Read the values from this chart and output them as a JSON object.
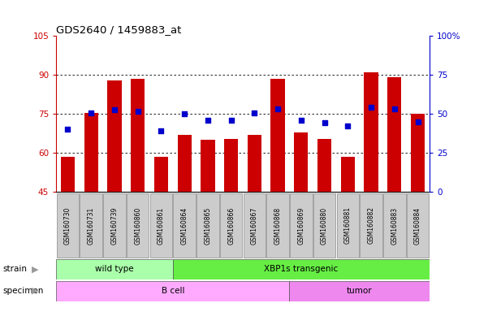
{
  "title": "GDS2640 / 1459883_at",
  "categories": [
    "GSM160730",
    "GSM160731",
    "GSM160739",
    "GSM160860",
    "GSM160861",
    "GSM160864",
    "GSM160865",
    "GSM160866",
    "GSM160867",
    "GSM160868",
    "GSM160869",
    "GSM160880",
    "GSM160881",
    "GSM160882",
    "GSM160883",
    "GSM160884"
  ],
  "bar_values": [
    58.5,
    75.5,
    88.0,
    88.5,
    58.5,
    67.0,
    65.0,
    65.5,
    67.0,
    88.5,
    68.0,
    65.5,
    58.5,
    91.0,
    89.0,
    75.0
  ],
  "dot_values": [
    69.0,
    75.5,
    76.5,
    76.0,
    68.5,
    75.0,
    72.5,
    72.5,
    75.5,
    77.0,
    72.5,
    71.5,
    70.5,
    77.5,
    77.0,
    72.0
  ],
  "ylim": [
    45,
    105
  ],
  "yticks": [
    45,
    60,
    75,
    90,
    105
  ],
  "ytick_labels": [
    "45",
    "60",
    "75",
    "90",
    "105"
  ],
  "y2lim": [
    0,
    100
  ],
  "y2ticks": [
    0,
    25,
    50,
    75,
    100
  ],
  "y2tick_labels": [
    "0",
    "25",
    "50",
    "75",
    "100%"
  ],
  "bar_color": "#cc0000",
  "dot_color": "#0000cc",
  "bar_baseline": 45,
  "strain_groups": [
    {
      "label": "wild type",
      "start": 0,
      "end": 4
    },
    {
      "label": "XBP1s transgenic",
      "start": 5,
      "end": 15
    }
  ],
  "specimen_groups": [
    {
      "label": "B cell",
      "start": 0,
      "end": 9
    },
    {
      "label": "tumor",
      "start": 10,
      "end": 15
    }
  ],
  "strain_colors": [
    "#aaffaa",
    "#66ee44"
  ],
  "specimen_colors": [
    "#ffaaff",
    "#ee88ee"
  ],
  "axis_color_left": "#cc0000",
  "axis_color_right": "#0000cc",
  "tick_label_bg": "#cccccc",
  "dotted_lines": [
    60,
    75,
    90
  ],
  "fig_width": 6.01,
  "fig_height": 3.84,
  "dpi": 100
}
